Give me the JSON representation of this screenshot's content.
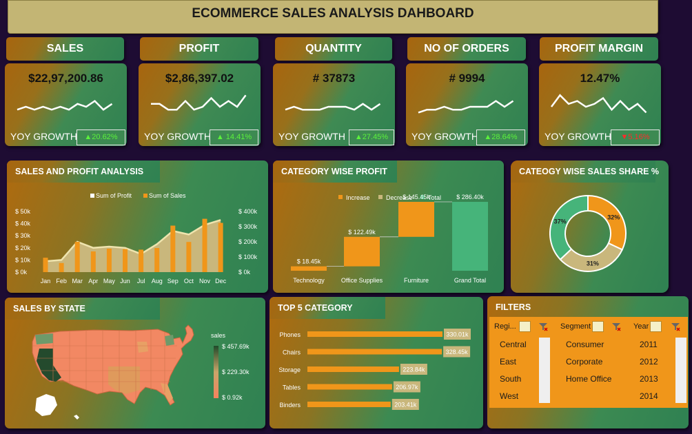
{
  "header": {
    "title": "ECOMMERCE SALES ANALYSIS DAHBOARD"
  },
  "kpis": [
    {
      "label": "SALES",
      "value": "$22,97,200.86",
      "yoy_label": "YOY GROWTH",
      "yoy_value": "▲20.62%",
      "trend": "up",
      "spark": [
        6,
        5,
        6,
        5,
        6,
        5,
        6,
        4,
        5,
        3,
        6,
        4
      ]
    },
    {
      "label": "PROFIT",
      "value": "$2,86,397.02",
      "yoy_label": "YOY GROWTH",
      "yoy_value": "▲ 14.41%",
      "trend": "up",
      "spark": [
        4,
        4,
        6,
        6,
        3,
        6,
        5,
        2,
        5,
        3,
        5,
        1
      ]
    },
    {
      "label": "QUANTITY",
      "value": "# 37873",
      "yoy_label": "YOY GROWTH",
      "yoy_value": "▲27.45%",
      "trend": "up",
      "spark": [
        6,
        5,
        6,
        6,
        6,
        5,
        5,
        5,
        6,
        4,
        6,
        4
      ]
    },
    {
      "label": "NO OF ORDERS",
      "value": "# 9994",
      "yoy_label": "YOY GROWTH",
      "yoy_value": "▲28.64%",
      "trend": "up",
      "spark": [
        7,
        6,
        6,
        5,
        6,
        6,
        5,
        5,
        5,
        3,
        5,
        3
      ]
    },
    {
      "label": "PROFIT MARGIN",
      "value": "12.47%",
      "yoy_label": "YOY GROWTH",
      "yoy_value": "▼5.16%",
      "trend": "down",
      "spark": [
        5,
        1,
        4,
        3,
        5,
        4,
        2,
        6,
        3,
        6,
        4,
        7
      ]
    }
  ],
  "sales_profit": {
    "title": "SALES AND PROFIT ANALYSIS",
    "legend_profit": "Sum of Profit",
    "legend_sales": "Sum of Sales",
    "left_ticks": [
      "$ 50k",
      "$ 40k",
      "$ 30k",
      "$ 20k",
      "$ 10k",
      "$ 0k"
    ],
    "right_ticks": [
      "$ 400k",
      "$ 300k",
      "$ 200k",
      "$ 100k",
      "$ 0k"
    ]
  },
  "category_profit": {
    "title": "CATEGORY WISE PROFIT",
    "legend": [
      "Increase",
      "Decrease",
      "Total"
    ]
  },
  "sales_share": {
    "title": "CATEOGY WISE SALES SHARE %"
  },
  "state_map": {
    "title": "SALES BY STATE",
    "legend_title": "sales",
    "legend_max": "$ 457.69k",
    "legend_mid": "$ 229.30k",
    "legend_min": "$ 0.92k"
  },
  "top5": {
    "title": "TOP 5 CATEGORY"
  },
  "filters": {
    "title": "FILTERS",
    "region": {
      "label": "Regi...",
      "items": [
        "Central",
        "East",
        "South",
        "West"
      ]
    },
    "segment": {
      "label": "Segment",
      "items": [
        "Consumer",
        "Corporate",
        "Home Office"
      ]
    },
    "year": {
      "label": "Year",
      "items": [
        "2011",
        "2012",
        "2013",
        "2014"
      ]
    }
  },
  "colors": {
    "orange": "#f0961a",
    "khaki": "#c9b77c",
    "green": "#46b47a",
    "line": "#efe4ae"
  },
  "chart_data": [
    {
      "type": "bar",
      "title": "SALES AND PROFIT ANALYSIS",
      "categories": [
        "Jan",
        "Feb",
        "Mar",
        "Apr",
        "May",
        "Jun",
        "Jul",
        "Aug",
        "Sep",
        "Oct",
        "Nov",
        "Dec"
      ],
      "series": [
        {
          "name": "Sum of Profit",
          "type": "area",
          "axis": "left",
          "values": [
            9000,
            10000,
            25000,
            20000,
            21000,
            20000,
            15000,
            23000,
            34000,
            31000,
            39000,
            43000
          ]
        },
        {
          "name": "Sum of Sales",
          "type": "bar",
          "axis": "right",
          "values": [
            95000,
            60000,
            200000,
            137000,
            155000,
            152000,
            148000,
            159000,
            307000,
            199000,
            352000,
            325000
          ]
        }
      ],
      "ylim_left": [
        0,
        50000
      ],
      "ylim_right": [
        0,
        400000
      ],
      "legend": "top"
    },
    {
      "type": "bar",
      "subtype": "waterfall",
      "title": "CATEGORY WISE PROFIT",
      "categories": [
        "Technology",
        "Office Supplies",
        "Furniture",
        "Grand Total"
      ],
      "values": [
        18.45,
        122.49,
        145.45,
        286.4
      ],
      "labels": [
        "$ 18.45k",
        "$ 122.49k",
        "$ 145.45k",
        "$ 286.40k"
      ],
      "kinds": [
        "increase",
        "increase",
        "increase",
        "total"
      ],
      "legend": "top"
    },
    {
      "type": "pie",
      "subtype": "donut",
      "title": "CATEOGY WISE SALES SHARE %",
      "values": [
        32,
        31,
        37
      ],
      "labels": [
        "32%",
        "31%",
        "37%"
      ]
    },
    {
      "type": "bar",
      "orientation": "horizontal",
      "title": "TOP 5 CATEGORY",
      "categories": [
        "Phones",
        "Chairs",
        "Storage",
        "Tables",
        "Binders"
      ],
      "values": [
        330.01,
        328.45,
        223.84,
        206.97,
        203.41
      ],
      "labels": [
        "330.01k",
        "328.45k",
        "223.84k",
        "206.97k",
        "203.41k"
      ]
    }
  ]
}
